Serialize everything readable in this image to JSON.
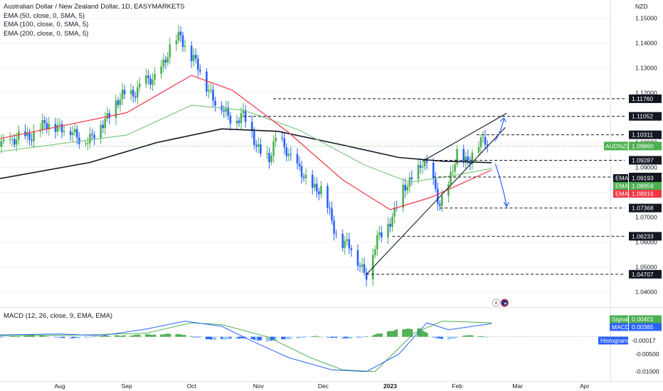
{
  "legend": {
    "title": "Australian Dollar / New Zealand Dollar, 1D, EASYMARKETS",
    "ema_lines": [
      "EMA (50, close, 0, SMA, 5)",
      "EMA (100, close, 0, SMA, 5)",
      "EMA (200, close, 0, SMA, 5)"
    ],
    "macd": "MACD (12, 26, close, 9, EMA, EMA)"
  },
  "colors": {
    "up": "#4caf50",
    "down": "#2962ff",
    "ema50": "#f23645",
    "ema100": "#81c784",
    "ema200": "#131722",
    "macd_line": "#2962ff",
    "signal_line": "#4caf50",
    "arrow": "#2962ff"
  },
  "chart_data": {
    "type": "candlestick",
    "currency": "NZD",
    "ylim": [
      1.035,
      1.155
    ],
    "y_ticks": [
      "1.15000",
      "1.14000",
      "1.13000",
      "1.12000",
      "1.11000",
      "1.10000",
      "1.09000",
      "1.08000",
      "1.07000",
      "1.06000",
      "1.05000",
      "1.04000"
    ],
    "x_ticks": [
      "Aug",
      "Sep",
      "Oct",
      "Nov",
      "Dec",
      "2023",
      "Feb",
      "Mar",
      "Apr"
    ],
    "price_path": [
      [
        "Jul 1",
        1.101
      ],
      [
        "Jul 10",
        1.1
      ],
      [
        "Jul 20",
        1.104
      ],
      [
        "Jul 29",
        1.108
      ],
      [
        "Aug 8",
        1.103
      ],
      [
        "Aug 16",
        1.101
      ],
      [
        "Aug 22",
        1.11
      ],
      [
        "Aug 30",
        1.118
      ],
      [
        "Sep 7",
        1.122
      ],
      [
        "Sep 14",
        1.126
      ],
      [
        "Sep 20",
        1.135
      ],
      [
        "Sep 26",
        1.144
      ],
      [
        "Sep 29",
        1.137
      ],
      [
        "Oct 4",
        1.13
      ],
      [
        "Oct 12",
        1.117
      ],
      [
        "Oct 18",
        1.11
      ],
      [
        "Oct 25",
        1.111
      ],
      [
        "Oct 31",
        1.099
      ],
      [
        "Nov 6",
        1.093
      ],
      [
        "Nov 10",
        1.102
      ],
      [
        "Nov 14",
        1.098
      ],
      [
        "Nov 18",
        1.09
      ],
      [
        "Nov 24",
        1.084
      ],
      [
        "Dec 1",
        1.08
      ],
      [
        "Dec 5",
        1.068
      ],
      [
        "Dec 9",
        1.061
      ],
      [
        "Dec 14",
        1.057
      ],
      [
        "Dec 19",
        1.05
      ],
      [
        "Dec 21",
        1.048
      ],
      [
        "Dec 26",
        1.06
      ],
      [
        "Dec 30",
        1.067
      ],
      [
        "Jan 3",
        1.072
      ],
      [
        "Jan 6",
        1.079
      ],
      [
        "Jan 12",
        1.087
      ],
      [
        "Jan 16",
        1.092
      ],
      [
        "Jan 20",
        1.086
      ],
      [
        "Jan 24",
        1.076
      ],
      [
        "Jan 28",
        1.082
      ],
      [
        "Feb 1",
        1.095
      ],
      [
        "Feb 6",
        1.093
      ],
      [
        "Feb 10",
        1.098
      ],
      [
        "Feb 14",
        1.101
      ],
      [
        "Feb 17",
        1.099
      ]
    ],
    "ema50": [
      [
        "Jul 1",
        1.101
      ],
      [
        "Sep 1",
        1.112
      ],
      [
        "Oct 1",
        1.127
      ],
      [
        "Oct 20",
        1.121
      ],
      [
        "Nov 15",
        1.104
      ],
      [
        "Dec 10",
        1.085
      ],
      [
        "Jan 1",
        1.073
      ],
      [
        "Jan 20",
        1.078
      ],
      [
        "Feb 17",
        1.089
      ]
    ],
    "ema100": [
      [
        "Jul 1",
        1.096
      ],
      [
        "Sep 1",
        1.103
      ],
      [
        "Oct 1",
        1.115
      ],
      [
        "Oct 25",
        1.113
      ],
      [
        "Nov 20",
        1.105
      ],
      [
        "Dec 20",
        1.091
      ],
      [
        "Jan 10",
        1.084
      ],
      [
        "Feb 1",
        1.087
      ],
      [
        "Feb 17",
        1.0896
      ]
    ],
    "ema200": [
      [
        "Jul 1",
        1.085
      ],
      [
        "Aug 15",
        1.092
      ],
      [
        "Sep 15",
        1.1
      ],
      [
        "Oct 15",
        1.1055
      ],
      [
        "Nov 10",
        1.1045
      ],
      [
        "Dec 10",
        1.099
      ],
      [
        "Jan 5",
        1.094
      ],
      [
        "Jan 25",
        1.0925
      ],
      [
        "Feb 17",
        1.0919
      ]
    ],
    "levels": [
      "1.11760",
      "1.11052",
      "1.10311",
      "1.09287",
      "1.08614",
      "1.07368",
      "1.06233",
      "1.04707"
    ],
    "wedge": {
      "lower": [
        [
          "Dec 21",
          1.047
        ],
        [
          "Feb 22",
          1.1055
        ]
      ],
      "upper": [
        [
          "Jan 16",
          1.0925
        ],
        [
          "Feb 22",
          1.1115
        ]
      ]
    },
    "tags": [
      {
        "label": "AUDNZD",
        "value": "1.09860",
        "style": "symbol"
      },
      {
        "label": "EMA",
        "value": "1.09193",
        "style": "ema200"
      },
      {
        "label": "EMA",
        "value": "1.08959",
        "style": "ema100"
      },
      {
        "label": "EMA",
        "value": "1.08916",
        "style": "ema50"
      }
    ],
    "macd": {
      "ylim": [
        -0.0115,
        0.0075
      ],
      "y_ticks": [
        "-0.00500",
        "-0.01000"
      ],
      "histogram_path": [
        [
          "Jul 1",
          -0.0004
        ],
        [
          "Jul 20",
          0.0006
        ],
        [
          "Aug 5",
          -0.0006
        ],
        [
          "Aug 20",
          0.0002
        ],
        [
          "Sep 5",
          0.0005
        ],
        [
          "Sep 20",
          0.0008
        ],
        [
          "Sep 28",
          0.0006
        ],
        [
          "Oct 10",
          -0.0009
        ],
        [
          "Oct 25",
          -0.0005
        ],
        [
          "Nov 5",
          -0.0013
        ],
        [
          "Nov 20",
          -0.0003
        ],
        [
          "Nov 28",
          0.0002
        ],
        [
          "Dec 10",
          -0.0006
        ],
        [
          "Dec 20",
          -0.0001
        ],
        [
          "Jan 5",
          0.0022
        ],
        [
          "Jan 15",
          0.0023
        ],
        [
          "Jan 22",
          -0.0004
        ],
        [
          "Jan 28",
          -0.0009
        ],
        [
          "Feb 5",
          0.0005
        ],
        [
          "Feb 17",
          -0.0002
        ]
      ],
      "macd_path": [
        [
          "Jul 1",
          0.0005
        ],
        [
          "Aug 1",
          0.0008
        ],
        [
          "Aug 20",
          0.0003
        ],
        [
          "Sep 10",
          0.0022
        ],
        [
          "Sep 28",
          0.0045
        ],
        [
          "Oct 15",
          0.003
        ],
        [
          "Oct 30",
          -0.0015
        ],
        [
          "Nov 15",
          -0.006
        ],
        [
          "Dec 5",
          -0.0095
        ],
        [
          "Dec 21",
          -0.01
        ],
        [
          "Jan 5",
          -0.005
        ],
        [
          "Jan 18",
          0.004
        ],
        [
          "Jan 28",
          0.002
        ],
        [
          "Feb 17",
          0.0038
        ]
      ],
      "signal_path": [
        [
          "Jul 1",
          0.0003
        ],
        [
          "Aug 10",
          0.0005
        ],
        [
          "Sep 10",
          0.001
        ],
        [
          "Oct 1",
          0.004
        ],
        [
          "Oct 15",
          0.0035
        ],
        [
          "Nov 5",
          0.0
        ],
        [
          "Nov 25",
          -0.006
        ],
        [
          "Dec 10",
          -0.0095
        ],
        [
          "Dec 25",
          -0.01
        ],
        [
          "Jan 12",
          0.001
        ],
        [
          "Jan 25",
          0.0045
        ],
        [
          "Feb 17",
          0.004
        ]
      ],
      "tags": [
        {
          "label": "Signal",
          "value": "0.00401",
          "style": "signal"
        },
        {
          "label": "MACD",
          "value": "0.00385",
          "style": "macd"
        },
        {
          "label": "Histogram",
          "value": "-0.00017",
          "style": "hist"
        }
      ]
    }
  }
}
